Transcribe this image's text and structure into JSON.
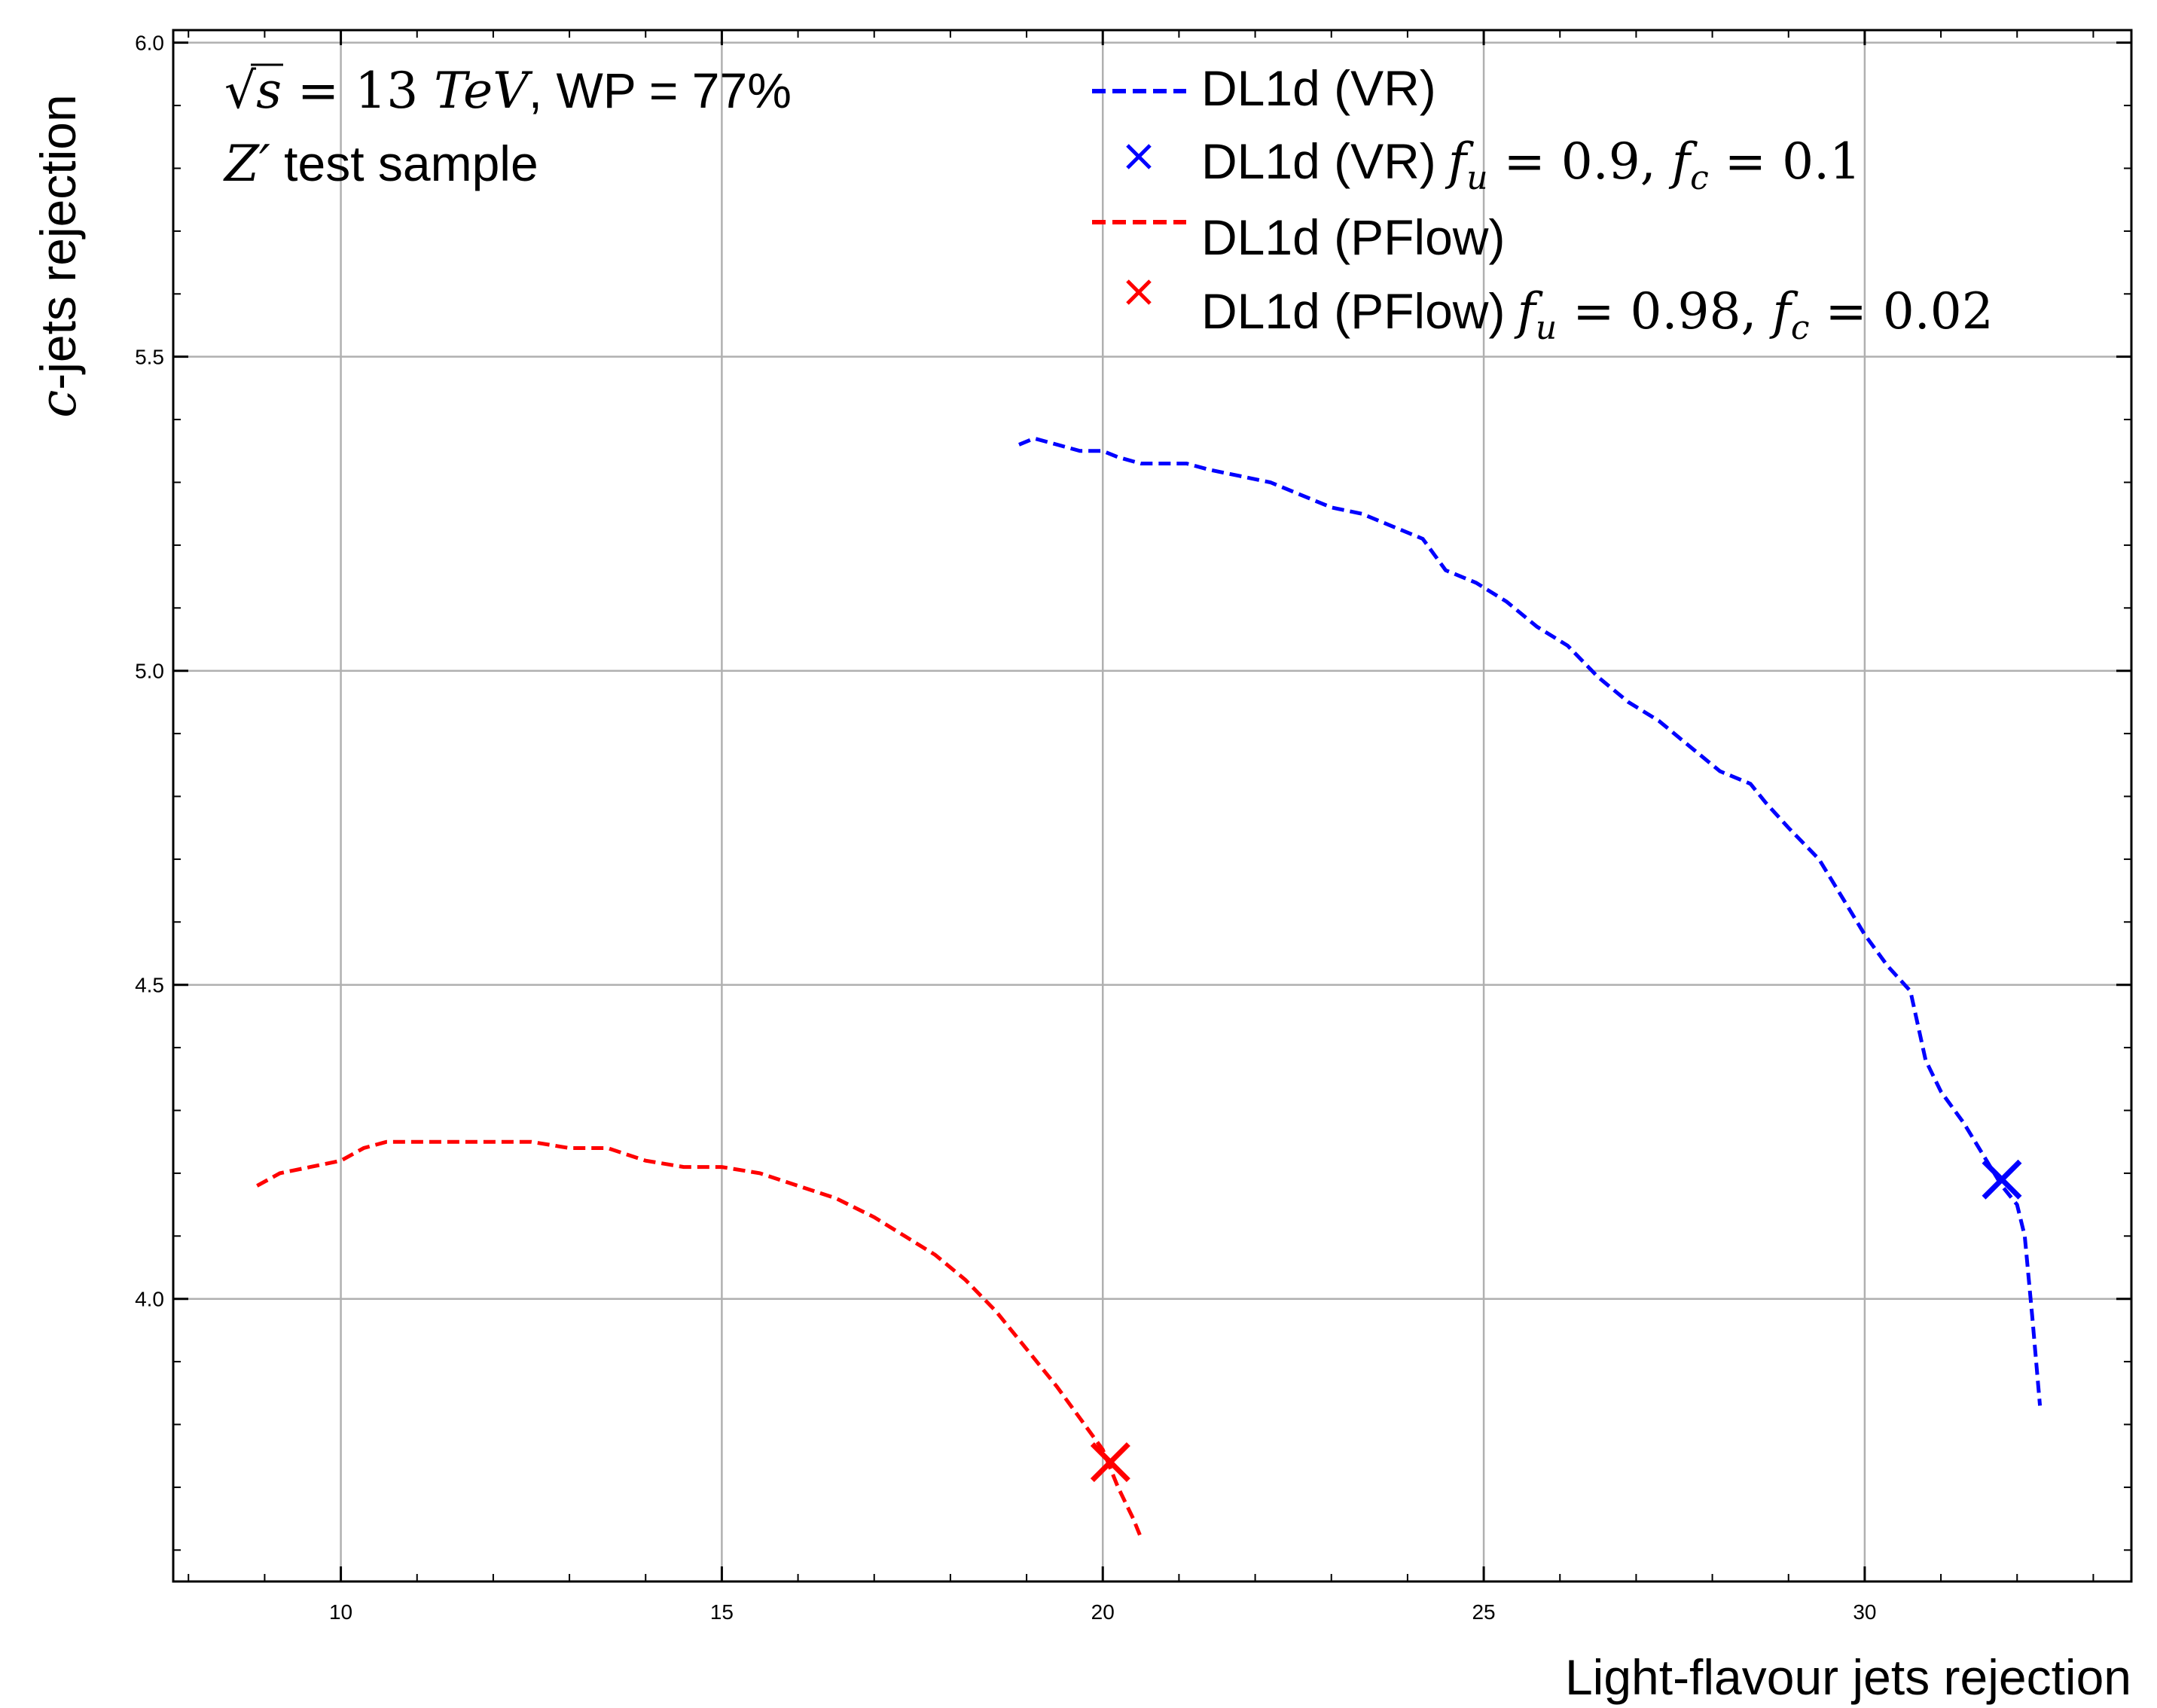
{
  "chart_data": {
    "type": "line",
    "xlabel": "Light-flavour jets rejection",
    "ylabel": "-jets rejection",
    "ylabel_symbol": "c",
    "xlim": [
      7.8,
      33.5
    ],
    "ylim": [
      3.55,
      6.02
    ],
    "xticks": [
      10,
      15,
      20,
      25,
      30
    ],
    "xtick_labels": [
      "10",
      "15",
      "20",
      "25",
      "30"
    ],
    "yticks": [
      4.0,
      4.5,
      5.0,
      5.5,
      6.0
    ],
    "ytick_labels": [
      "4.0",
      "4.5",
      "5.0",
      "5.5",
      "6.0"
    ],
    "grid": true,
    "legend_position": "top-right",
    "annotations": {
      "line1_sqrt": "√",
      "line1_s": "s",
      "line1_eq": " = 13 ",
      "line1_unit": "TeV",
      "line1_rest": ", WP = 77%",
      "line2_z": "Z′",
      "line2_rest": " test sample"
    },
    "series": [
      {
        "name": "DL1d (VR)",
        "color": "#0000ff",
        "style": "dashed",
        "x": [
          18.9,
          19.1,
          19.4,
          19.7,
          20.0,
          20.2,
          20.5,
          20.8,
          21.1,
          21.4,
          21.8,
          22.2,
          22.6,
          23.0,
          23.4,
          23.8,
          24.2,
          24.5,
          24.9,
          25.3,
          25.7,
          26.1,
          26.5,
          26.9,
          27.3,
          27.7,
          28.1,
          28.5,
          28.7,
          29.0,
          29.4,
          29.7,
          30.0,
          30.3,
          30.6,
          30.8,
          31.0,
          31.3,
          31.6,
          31.8,
          32.0,
          32.1,
          32.2,
          32.3
        ],
        "y": [
          5.36,
          5.37,
          5.36,
          5.35,
          5.35,
          5.34,
          5.33,
          5.33,
          5.33,
          5.32,
          5.31,
          5.3,
          5.28,
          5.26,
          5.25,
          5.23,
          5.21,
          5.16,
          5.14,
          5.11,
          5.07,
          5.04,
          4.99,
          4.95,
          4.92,
          4.88,
          4.84,
          4.82,
          4.79,
          4.75,
          4.7,
          4.64,
          4.58,
          4.53,
          4.49,
          4.38,
          4.33,
          4.28,
          4.22,
          4.18,
          4.15,
          4.1,
          3.97,
          3.83
        ]
      },
      {
        "name": "DL1d (PFlow)",
        "color": "#ff0000",
        "style": "dashed",
        "x": [
          8.9,
          9.2,
          9.6,
          10.0,
          10.3,
          10.6,
          11.0,
          11.5,
          12.0,
          12.5,
          13.0,
          13.5,
          14.0,
          14.5,
          15.0,
          15.5,
          16.0,
          16.5,
          17.0,
          17.4,
          17.8,
          18.2,
          18.6,
          19.0,
          19.4,
          19.7,
          20.0,
          20.2,
          20.4,
          20.5
        ],
        "y": [
          4.18,
          4.2,
          4.21,
          4.22,
          4.24,
          4.25,
          4.25,
          4.25,
          4.25,
          4.25,
          4.24,
          4.24,
          4.22,
          4.21,
          4.21,
          4.2,
          4.18,
          4.16,
          4.13,
          4.1,
          4.07,
          4.03,
          3.98,
          3.92,
          3.86,
          3.81,
          3.76,
          3.7,
          3.65,
          3.62
        ]
      }
    ],
    "points": [
      {
        "name": "DL1d (VR)",
        "math": "fu = 0.9, fc = 0.1",
        "x": 31.8,
        "y": 4.19,
        "color": "#0000ff",
        "marker": "x"
      },
      {
        "name": "DL1d (PFlow)",
        "math": "fu = 0.98, fc = 0.02",
        "x": 20.1,
        "y": 3.74,
        "color": "#ff0000",
        "marker": "x"
      }
    ],
    "legend": [
      {
        "label": "DL1d (VR)",
        "math": "",
        "marker": "dash",
        "color": "#0000ff"
      },
      {
        "label": "DL1d (VR)",
        "math_f": "f",
        "math_u": "u",
        "math_eq1": " = 0.9, ",
        "math_f2": "f",
        "math_c": "c",
        "math_eq2": " = 0.1",
        "marker": "x",
        "color": "#0000ff"
      },
      {
        "label": "DL1d (PFlow)",
        "math": "",
        "marker": "dash",
        "color": "#ff0000"
      },
      {
        "label": "DL1d (PFlow)",
        "math_f": "f",
        "math_u": "u",
        "math_eq1": " = 0.98, ",
        "math_f2": "f",
        "math_c": "c",
        "math_eq2": " = 0.02",
        "marker": "x",
        "color": "#ff0000"
      }
    ]
  }
}
